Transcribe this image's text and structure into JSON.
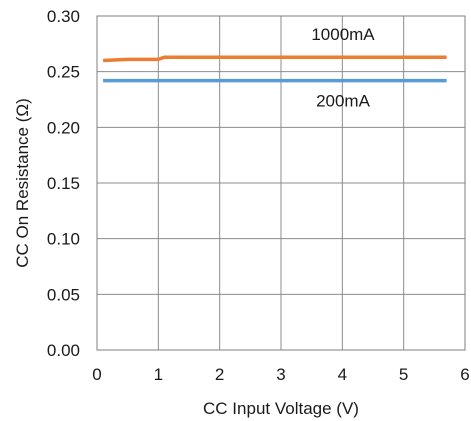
{
  "chart_data": {
    "type": "line",
    "xlabel": "CC Input Voltage (V)",
    "ylabel": "CC On Resistance (Ω)",
    "xlim": [
      0,
      6
    ],
    "ylim": [
      0,
      0.3
    ],
    "x_ticks": [
      "0",
      "1",
      "2",
      "3",
      "4",
      "5",
      "6"
    ],
    "y_ticks": [
      "0.00",
      "0.05",
      "0.10",
      "0.15",
      "0.20",
      "0.25",
      "0.30"
    ],
    "grid": true,
    "series": [
      {
        "name": "1000mA",
        "color": "#ED7D31",
        "x": [
          0.1,
          0.5,
          1.0,
          1.1,
          1.2,
          2.0,
          3.0,
          4.0,
          5.0,
          5.7
        ],
        "y": [
          0.26,
          0.261,
          0.261,
          0.263,
          0.263,
          0.263,
          0.263,
          0.263,
          0.263,
          0.263
        ]
      },
      {
        "name": "200mA",
        "color": "#5B9BD5",
        "x": [
          0.1,
          1.0,
          2.0,
          3.0,
          4.0,
          5.0,
          5.7
        ],
        "y": [
          0.242,
          0.242,
          0.242,
          0.242,
          0.242,
          0.242,
          0.242
        ]
      }
    ]
  }
}
